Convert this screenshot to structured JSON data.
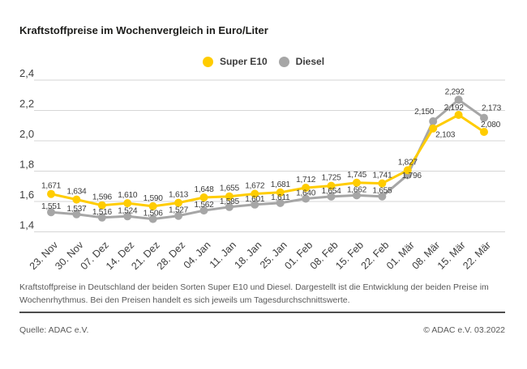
{
  "title": "Kraftstoffpreise im Wochenvergleich in Euro/Liter",
  "legend": {
    "super_e10": {
      "label": "Super E10",
      "color": "#FFCC00"
    },
    "diesel": {
      "label": "Diesel",
      "color": "#A6A6A6"
    }
  },
  "chart_data": {
    "type": "line",
    "title": "Kraftstoffpreise im Wochenvergleich in Euro/Liter",
    "categories": [
      "23. Nov",
      "30. Nov",
      "07. Dez",
      "14. Dez",
      "21. Dez",
      "28. Dez",
      "04. Jan",
      "11. Jan",
      "18. Jan",
      "25. Jan",
      "01. Feb",
      "08. Feb",
      "15. Feb",
      "22. Feb",
      "01. Mär",
      "08. Mär",
      "15. Mär",
      "22. Mär"
    ],
    "series": [
      {
        "name": "Super E10",
        "color": "#FFCC00",
        "values": [
          1.671,
          1.634,
          1.596,
          1.61,
          1.59,
          1.613,
          1.648,
          1.655,
          1.672,
          1.681,
          1.712,
          1.725,
          1.745,
          1.741,
          1.827,
          2.103,
          2.192,
          2.08
        ],
        "labels": [
          "1,671",
          "1,634",
          "1,596",
          "1,610",
          "1,590",
          "1,613",
          "1,648",
          "1,655",
          "1,672",
          "1,681",
          "1,712",
          "1,725",
          "1,745",
          "1,741",
          "1,827",
          "2,103",
          "2,192",
          "2,080"
        ]
      },
      {
        "name": "Diesel",
        "color": "#A6A6A6",
        "values": [
          1.551,
          1.537,
          1.516,
          1.524,
          1.506,
          1.527,
          1.562,
          1.585,
          1.601,
          1.611,
          1.64,
          1.654,
          1.662,
          1.655,
          1.796,
          2.15,
          2.292,
          2.173
        ],
        "labels": [
          "1,551",
          "1,537",
          "1,516",
          "1,524",
          "1,506",
          "1,527",
          "1,562",
          "1,585",
          "1,601",
          "1,611",
          "1,640",
          "1,654",
          "1,662",
          "1,655",
          "1,796",
          "2,150",
          "2,292",
          "2,173"
        ]
      }
    ],
    "ylim": [
      1.4,
      2.4
    ],
    "yticks": [
      "2,4",
      "2,2",
      "2,0",
      "1,8",
      "1,6",
      "1,4"
    ],
    "grid": true,
    "legend_position": "top-center",
    "ylabel": "Euro/Liter"
  },
  "footnote": {
    "line1": "Kraftstoffpreise in Deutschland der beiden Sorten Super E10 und Diesel. Dargestellt ist die Entwicklung der beiden Preise im",
    "line2": "Wochenrhythmus. Bei den Preisen handelt es sich jeweils um Tagesdurchschnittswerte."
  },
  "source": "Quelle: ADAC e.V.",
  "copyright": "© ADAC e.V. 03.2022"
}
